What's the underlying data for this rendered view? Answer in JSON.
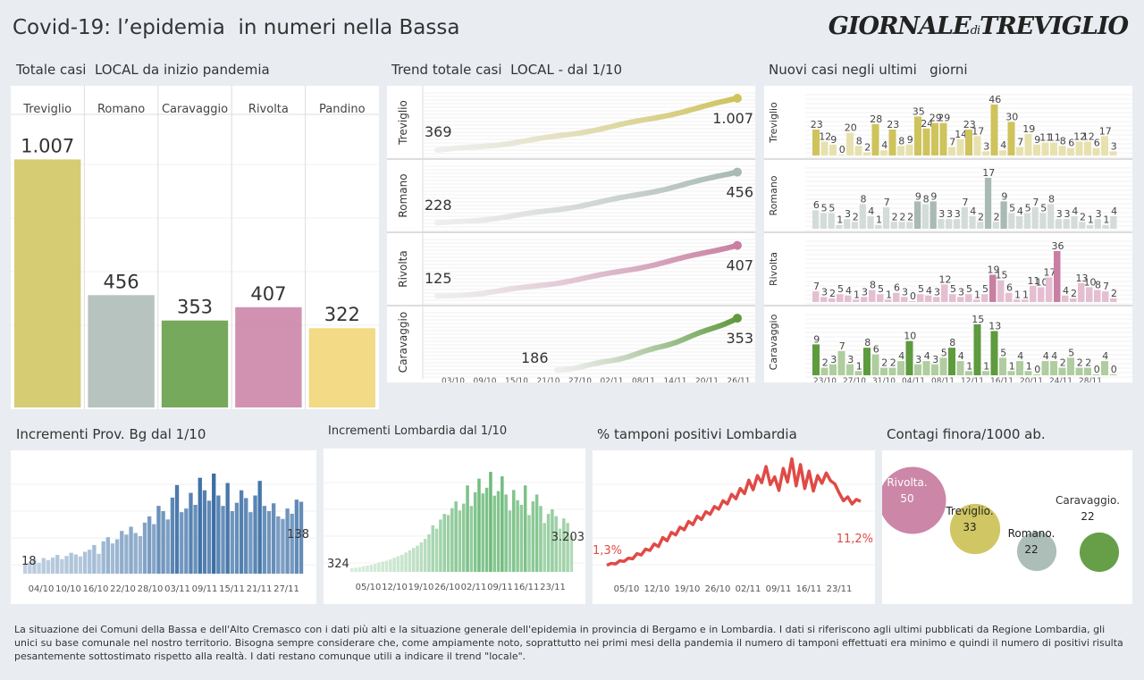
{
  "header": {
    "title": "Covid-19: l’epidemia  in numeri nella Bassa",
    "logo_main": "GIORNALE",
    "logo_di": "di",
    "logo_city": "TREVIGLIO"
  },
  "sections": {
    "totals": "Totale casi  LOCAL da inizio pandemia",
    "trend": "Trend totale casi  LOCAL - dal 1/10",
    "new_cases": "Nuovi casi negli ultimi   giorni",
    "prov_bg": "Incrementi Prov. Bg dal 1/10",
    "lombardia": "Incrementi Lombardia dal 1/10",
    "tamponi": "% tamponi positivi Lombardia",
    "contagi": "Contagi finora/1000 ab."
  },
  "colors": {
    "treviglio": "#cfc35c",
    "romano": "#a9b9b4",
    "caravaggio": "#5e9a3e",
    "rivolta": "#c97fa3",
    "pandino": "#f0d472",
    "bg_blue": "#3b6ea5",
    "lombardia_green": "#6dba7a",
    "tamponi_red": "#e04a46"
  },
  "chart_data": [
    {
      "id": "totals",
      "type": "bar",
      "categories": [
        "Treviglio",
        "Romano",
        "Caravaggio",
        "Rivolta",
        "Pandino"
      ],
      "values": [
        1007,
        456,
        353,
        407,
        322
      ],
      "labels": [
        "1.007",
        "456",
        "353",
        "407",
        "322"
      ],
      "ylim": [
        0,
        1150
      ]
    },
    {
      "id": "trend",
      "type": "line",
      "series": [
        {
          "name": "Treviglio",
          "start": 369,
          "end": 1007,
          "start_label": "369",
          "end_label": "1.007"
        },
        {
          "name": "Romano",
          "start": 228,
          "end": 456,
          "start_label": "228",
          "end_label": "456"
        },
        {
          "name": "Rivolta",
          "start": 125,
          "end": 407,
          "start_label": "125",
          "end_label": "407"
        },
        {
          "name": "Caravaggio",
          "start": 186,
          "end": 353,
          "start_label": "186",
          "end_label": "353"
        }
      ],
      "x_ticks": [
        "03/10",
        "09/10",
        "15/10",
        "21/10",
        "27/10",
        "02/11",
        "08/11",
        "14/11",
        "20/11",
        "26/11"
      ]
    },
    {
      "id": "new_cases",
      "type": "bar",
      "x_ticks": [
        "23/10",
        "27/10",
        "31/10",
        "04/11",
        "08/11",
        "12/11",
        "16/11",
        "20/11",
        "24/11",
        "28/11"
      ],
      "series": [
        {
          "name": "Treviglio",
          "values": [
            23,
            12,
            9,
            0,
            20,
            8,
            2,
            28,
            4,
            23,
            8,
            9,
            35,
            24,
            29,
            29,
            7,
            14,
            23,
            17,
            3,
            46,
            4,
            30,
            7,
            19,
            9,
            11,
            11,
            8,
            6,
            12,
            12,
            6,
            17,
            3
          ]
        },
        {
          "name": "Romano",
          "values": [
            6,
            5,
            5,
            1,
            3,
            2,
            8,
            4,
            1,
            7,
            2,
            2,
            2,
            9,
            8,
            9,
            3,
            3,
            3,
            7,
            4,
            2,
            17,
            2,
            9,
            5,
            4,
            5,
            7,
            5,
            8,
            3,
            3,
            4,
            2,
            1,
            3,
            1,
            4
          ]
        },
        {
          "name": "Rivolta",
          "values": [
            7,
            3,
            2,
            5,
            4,
            1,
            3,
            8,
            5,
            1,
            6,
            3,
            0,
            5,
            4,
            3,
            12,
            5,
            3,
            5,
            1,
            5,
            19,
            15,
            6,
            1,
            1,
            11,
            10,
            17,
            36,
            4,
            2,
            13,
            10,
            8,
            7,
            2
          ]
        },
        {
          "name": "Caravaggio",
          "values": [
            9,
            2,
            3,
            7,
            3,
            1,
            8,
            6,
            2,
            2,
            4,
            10,
            3,
            4,
            3,
            5,
            8,
            4,
            1,
            15,
            1,
            13,
            5,
            1,
            4,
            1,
            0,
            4,
            4,
            2,
            5,
            2,
            2,
            0,
            4,
            0
          ]
        }
      ]
    },
    {
      "id": "prov_bg",
      "type": "bar",
      "start_label": "18",
      "end_label": "138",
      "x_ticks": [
        "04/10",
        "10/10",
        "16/10",
        "22/10",
        "28/10",
        "03/11",
        "09/11",
        "15/11",
        "21/11",
        "27/11"
      ],
      "values": [
        18,
        22,
        28,
        21,
        30,
        26,
        31,
        36,
        28,
        34,
        40,
        37,
        33,
        42,
        46,
        55,
        38,
        62,
        70,
        58,
        66,
        82,
        75,
        90,
        78,
        72,
        98,
        110,
        95,
        130,
        120,
        104,
        146,
        170,
        118,
        125,
        155,
        132,
        184,
        160,
        140,
        192,
        150,
        130,
        174,
        120,
        136,
        160,
        145,
        118,
        150,
        178,
        130,
        120,
        135,
        110,
        105,
        125,
        115,
        142,
        138
      ]
    },
    {
      "id": "lombardia",
      "type": "bar",
      "start_label": "324",
      "end_label": "3.203",
      "x_ticks": [
        "05/10",
        "12/10",
        "19/10",
        "26/10",
        "02/11",
        "09/11",
        "16/11",
        "23/11"
      ],
      "values": [
        324,
        380,
        420,
        510,
        560,
        620,
        700,
        820,
        900,
        980,
        1100,
        1250,
        1380,
        1500,
        1700,
        1900,
        2100,
        2300,
        2600,
        2900,
        3300,
        4100,
        3800,
        4600,
        5100,
        5000,
        5600,
        6200,
        5400,
        6000,
        7600,
        5800,
        7000,
        8200,
        6900,
        7400,
        8800,
        6700,
        7100,
        8400,
        6800,
        5400,
        7200,
        6300,
        5900,
        7600,
        5000,
        6200,
        6800,
        5800,
        4300,
        5100,
        5500,
        4900,
        3800,
        4700,
        4300,
        3203
      ]
    },
    {
      "id": "tamponi",
      "type": "line",
      "start_label": "1,3%",
      "end_label": "11,2%",
      "x_ticks": [
        "05/10",
        "12/10",
        "19/10",
        "26/10",
        "02/11",
        "09/11",
        "16/11",
        "23/11"
      ],
      "values": [
        1.3,
        1.6,
        1.5,
        2.0,
        1.9,
        2.4,
        2.3,
        3.1,
        2.9,
        3.8,
        3.6,
        4.6,
        4.2,
        5.6,
        5.1,
        6.4,
        6.0,
        7.2,
        6.8,
        8.1,
        7.6,
        8.9,
        8.4,
        9.6,
        9.2,
        10.4,
        10.0,
        11.3,
        10.8,
        12.3,
        11.6,
        13.2,
        12.4,
        14.5,
        13.0,
        15.2,
        14.1,
        16.6,
        13.8,
        15.0,
        12.9,
        16.3,
        14.2,
        17.8,
        13.6,
        16.9,
        13.2,
        15.9,
        12.8,
        15.2,
        14.0,
        15.6,
        14.4,
        13.9,
        12.5,
        11.3,
        11.9,
        10.8,
        11.5,
        11.2
      ]
    },
    {
      "id": "contagi",
      "type": "scatter",
      "points": [
        {
          "name": "Rivolta.",
          "value": 50,
          "value_label": "50"
        },
        {
          "name": "Treviglio.",
          "value": 33,
          "value_label": "33"
        },
        {
          "name": "Romano.",
          "value": 22,
          "value_label": "22"
        },
        {
          "name": "Caravaggio.",
          "value": 22,
          "value_label": "22"
        }
      ]
    }
  ],
  "footer": "La situazione dei Comuni della Bassa e dell'Alto Cremasco con i dati più alti e la situazione generale dell'epidemia in provincia di Bergamo e in Lombardia.  I dati si riferiscono agli ultimi pubblicati da Regione Lombardia, gli unici su base comunale nel  nostro territorio.  Bisogna sempre considerare che, come ampiamente noto, soprattutto nei primi mesi della pandemia il numero di tamponi effettuati era minimo e quindi il numero di positivi risulta pesantemente sottostimato rispetto alla realtà. I dati restano comunque utili a indicare il trend \"locale\"."
}
